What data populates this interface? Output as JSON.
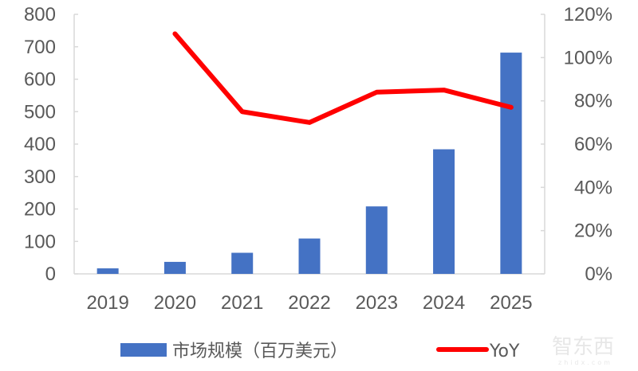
{
  "chart_data": {
    "type": "bar+line",
    "categories": [
      "2019",
      "2020",
      "2021",
      "2022",
      "2023",
      "2024",
      "2025"
    ],
    "series": [
      {
        "name": "市场规模（百万美元）",
        "type": "bar",
        "axis": "left",
        "color": "#4472C4",
        "values": [
          17,
          37,
          65,
          109,
          208,
          384,
          682
        ]
      },
      {
        "name": "YoY",
        "type": "line",
        "axis": "right",
        "color": "#FF0000",
        "values": [
          null,
          111,
          75,
          70,
          84,
          85,
          77
        ]
      }
    ],
    "left_axis": {
      "ylim": [
        0,
        800
      ],
      "ticks": [
        "0",
        "100",
        "200",
        "300",
        "400",
        "500",
        "600",
        "700",
        "800"
      ]
    },
    "right_axis": {
      "ylim": [
        0,
        120
      ],
      "unit": "%",
      "ticks": [
        "0%",
        "20%",
        "40%",
        "60%",
        "80%",
        "100%",
        "120%"
      ]
    },
    "grid": false,
    "legend_placement": "bottom"
  },
  "watermark": {
    "text": "智东西",
    "subtext": "zhidx.com"
  }
}
